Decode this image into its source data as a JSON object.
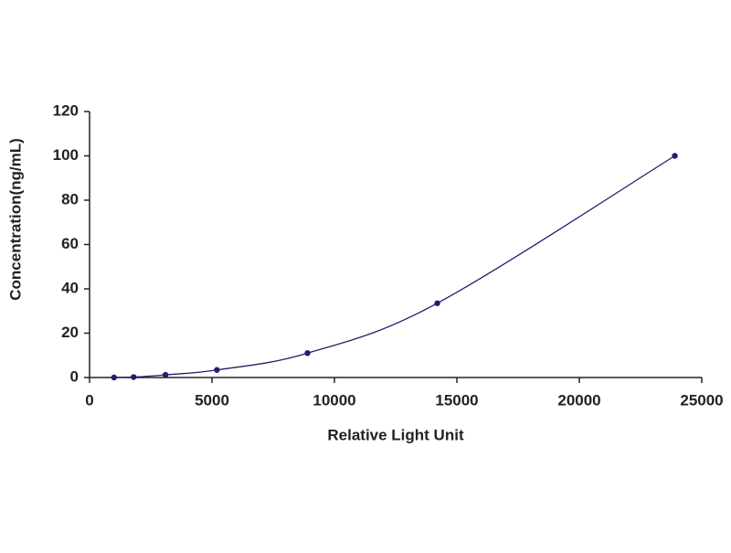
{
  "chart_data": {
    "type": "scatter",
    "x_label": "Relative Light Unit",
    "y_label": "Concentration(ng/mL)",
    "series": [
      {
        "color": "#1f1f6e",
        "x": [
          1000,
          1800,
          3100,
          5200,
          8900,
          14200,
          23900
        ],
        "values": [
          0,
          0.2,
          1.2,
          3.4,
          11,
          33.5,
          100
        ]
      }
    ],
    "xlim": [
      0,
      25000
    ],
    "xticks": [
      0,
      5000,
      10000,
      15000,
      20000,
      25000
    ],
    "ylim": [
      0,
      120
    ],
    "yticks": [
      0,
      20,
      40,
      60,
      80,
      100,
      120
    ],
    "fit_curve": true
  }
}
